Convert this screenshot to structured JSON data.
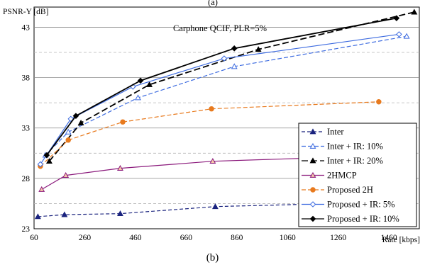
{
  "caption_top": "(a)",
  "caption_bottom": "(b)",
  "chart_data": {
    "type": "line",
    "title": "Carphone QCIF, PLR=5%",
    "xlabel": "Rate [kbps]",
    "ylabel": "PSNR-Y [dB]",
    "xlim": [
      60,
      1580
    ],
    "ylim": [
      23,
      45
    ],
    "xticks": [
      60,
      260,
      460,
      660,
      860,
      1060,
      1260,
      1460
    ],
    "yticks": [
      23,
      28,
      33,
      38,
      43
    ],
    "grid": "horizontal",
    "legend_position": "bottom-right",
    "series": [
      {
        "name": "Inter",
        "color": "#1a237e",
        "dash": "5,3",
        "marker": "triangle",
        "marker_fill": "#1a237e",
        "points": [
          [
            75,
            24.2
          ],
          [
            180,
            24.4
          ],
          [
            400,
            24.5
          ],
          [
            775,
            25.2
          ],
          [
            1400,
            25.6
          ]
        ]
      },
      {
        "name": "Inter + IR: 10%",
        "color": "#3d6be0",
        "dash": "6,3",
        "marker": "triangle",
        "marker_fill": "#ffffff",
        "points": [
          [
            105,
            30.3
          ],
          [
            195,
            32.6
          ],
          [
            470,
            36.0
          ],
          [
            850,
            39.1
          ],
          [
            1530,
            42.1
          ]
        ]
      },
      {
        "name": "Inter + IR: 20%",
        "color": "#000000",
        "dash": "9,4",
        "marker": "triangle",
        "marker_fill": "#000000",
        "points": [
          [
            120,
            29.7
          ],
          [
            245,
            33.5
          ],
          [
            515,
            37.3
          ],
          [
            945,
            40.8
          ],
          [
            1560,
            44.5
          ]
        ]
      },
      {
        "name": "2HMCP",
        "color": "#8b1a7c",
        "dash": "",
        "marker": "triangle",
        "marker_fill": "#f6c9a8",
        "points": [
          [
            90,
            26.9
          ],
          [
            185,
            28.3
          ],
          [
            400,
            29.0
          ],
          [
            765,
            29.7
          ],
          [
            1380,
            30.2
          ]
        ]
      },
      {
        "name": "Proposed 2H",
        "color": "#e87a1e",
        "dash": "6,3",
        "marker": "circle",
        "marker_fill": "#e87a1e",
        "points": [
          [
            85,
            29.2
          ],
          [
            195,
            31.8
          ],
          [
            410,
            33.6
          ],
          [
            760,
            34.9
          ],
          [
            1420,
            35.6
          ]
        ]
      },
      {
        "name": "Proposed + IR: 5%",
        "color": "#3d6be0",
        "dash": "",
        "marker": "diamond",
        "marker_fill": "#ffffff",
        "points": [
          [
            85,
            29.4
          ],
          [
            205,
            33.9
          ],
          [
            450,
            37.1
          ],
          [
            810,
            39.9
          ],
          [
            1500,
            42.3
          ]
        ]
      },
      {
        "name": "Proposed + IR: 10%",
        "color": "#000000",
        "dash": "",
        "marker": "diamond",
        "marker_fill": "#000000",
        "points": [
          [
            110,
            30.3
          ],
          [
            225,
            34.2
          ],
          [
            480,
            37.7
          ],
          [
            850,
            40.9
          ],
          [
            1490,
            43.9
          ]
        ]
      }
    ]
  }
}
